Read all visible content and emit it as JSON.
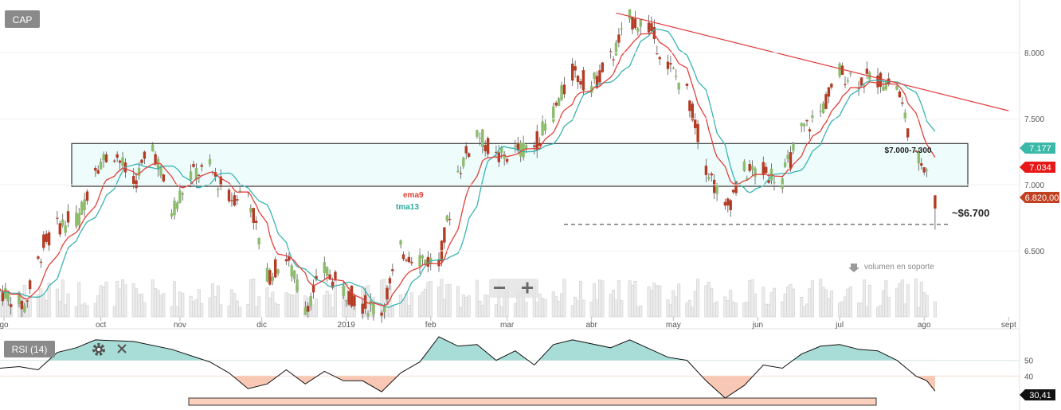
{
  "symbol_label": "CAP",
  "rsi_panel": {
    "label": "RSI (14)",
    "levels": [
      50,
      40
    ],
    "current": "30,41"
  },
  "price_axis": {
    "ticks": [
      "8.000",
      "7.500",
      "7.000",
      "6.500"
    ]
  },
  "time_axis": {
    "ticks": [
      "go",
      "oct",
      "nov",
      "dic",
      "2019",
      "feb",
      "mar",
      "abr",
      "may",
      "jun",
      "jul",
      "ago",
      "sept"
    ]
  },
  "badges": {
    "tma13": "7.177",
    "ema9": "7.034",
    "last": "6.820,00"
  },
  "annotations": {
    "zone": "$7.000-7.300",
    "support": "~$6.700",
    "volume_note": "volumen en soporte",
    "ema_label": "ema9",
    "tma_label": "tma13"
  },
  "colors": {
    "up": "#8cbc6c",
    "down": "#b43c24",
    "ema": "#e0413a",
    "tma": "#3ab4b0",
    "zone": "#eefcfc",
    "rsi_upper_fill": "#a8dcd6",
    "rsi_lower_fill": "#f8c8b4",
    "badge_teal": "#3ab8a8",
    "badge_red": "#e81818",
    "badge_brown": "#c04020"
  },
  "chart_data": {
    "type": "candlestick",
    "symbol": "CAP",
    "y_range": [
      6.0,
      8.35
    ],
    "x_range": [
      "2018-08-27",
      "2019-09-05"
    ],
    "price_series": [
      [
        "2018-08-27",
        6.2
      ],
      [
        "2018-09-05",
        6.08
      ],
      [
        "2018-09-12",
        6.55
      ],
      [
        "2018-09-18",
        6.7
      ],
      [
        "2018-09-25",
        6.75
      ],
      [
        "2018-10-01",
        7.15
      ],
      [
        "2018-10-08",
        7.25
      ],
      [
        "2018-10-15",
        7.0
      ],
      [
        "2018-10-22",
        7.3
      ],
      [
        "2018-10-29",
        6.8
      ],
      [
        "2018-11-05",
        7.08
      ],
      [
        "2018-11-12",
        7.12
      ],
      [
        "2018-11-19",
        6.9
      ],
      [
        "2018-11-26",
        6.95
      ],
      [
        "2018-12-03",
        6.3
      ],
      [
        "2018-12-10",
        6.45
      ],
      [
        "2018-12-17",
        6.08
      ],
      [
        "2018-12-24",
        6.35
      ],
      [
        "2018-12-31",
        6.2
      ],
      [
        "2019-01-07",
        6.1
      ],
      [
        "2019-01-14",
        6.05
      ],
      [
        "2019-01-21",
        6.5
      ],
      [
        "2019-01-28",
        6.45
      ],
      [
        "2019-02-04",
        6.4
      ],
      [
        "2019-02-11",
        7.1
      ],
      [
        "2019-02-18",
        7.4
      ],
      [
        "2019-02-25",
        7.2
      ],
      [
        "2019-03-04",
        7.25
      ],
      [
        "2019-03-11",
        7.3
      ],
      [
        "2019-03-18",
        7.55
      ],
      [
        "2019-03-25",
        7.85
      ],
      [
        "2019-04-01",
        7.75
      ],
      [
        "2019-04-08",
        7.95
      ],
      [
        "2019-04-15",
        8.25
      ],
      [
        "2019-04-22",
        8.2
      ],
      [
        "2019-04-29",
        7.9
      ],
      [
        "2019-05-06",
        7.7
      ],
      [
        "2019-05-13",
        7.15
      ],
      [
        "2019-05-20",
        6.8
      ],
      [
        "2019-05-27",
        7.1
      ],
      [
        "2019-06-03",
        7.1
      ],
      [
        "2019-06-10",
        7.05
      ],
      [
        "2019-06-17",
        7.4
      ],
      [
        "2019-06-24",
        7.55
      ],
      [
        "2019-07-01",
        7.85
      ],
      [
        "2019-07-08",
        7.8
      ],
      [
        "2019-07-15",
        7.8
      ],
      [
        "2019-07-22",
        7.75
      ],
      [
        "2019-07-29",
        7.2
      ],
      [
        "2019-08-02",
        7.15
      ],
      [
        "2019-08-05",
        6.82
      ]
    ],
    "last_price": 6.82,
    "moving_averages": [
      {
        "name": "ema9",
        "last": 7.034
      },
      {
        "name": "tma13",
        "last": 7.177
      }
    ],
    "resistance_zone": [
      7.0,
      7.3
    ],
    "support_level": 6.7,
    "trendline": [
      [
        "2019-04-10",
        8.3
      ],
      [
        "2019-09-01",
        7.56
      ]
    ],
    "rsi": {
      "period": 14,
      "levels": [
        50,
        40
      ],
      "last": 30.41,
      "series": [
        [
          "2018-08-27",
          45
        ],
        [
          "2018-09-03",
          46
        ],
        [
          "2018-09-10",
          44
        ],
        [
          "2018-09-17",
          55
        ],
        [
          "2018-09-24",
          58
        ],
        [
          "2018-10-01",
          63
        ],
        [
          "2018-10-15",
          62
        ],
        [
          "2018-10-29",
          57
        ],
        [
          "2018-11-12",
          49
        ],
        [
          "2018-11-19",
          42
        ],
        [
          "2018-11-26",
          32
        ],
        [
          "2018-12-03",
          35
        ],
        [
          "2018-12-10",
          44
        ],
        [
          "2018-12-17",
          35
        ],
        [
          "2018-12-24",
          43
        ],
        [
          "2018-12-31",
          37
        ],
        [
          "2019-01-07",
          37
        ],
        [
          "2019-01-14",
          30
        ],
        [
          "2019-01-21",
          42
        ],
        [
          "2019-01-28",
          49
        ],
        [
          "2019-02-04",
          65
        ],
        [
          "2019-02-11",
          59
        ],
        [
          "2019-02-18",
          60
        ],
        [
          "2019-02-25",
          50
        ],
        [
          "2019-03-04",
          56
        ],
        [
          "2019-03-11",
          47
        ],
        [
          "2019-03-18",
          60
        ],
        [
          "2019-03-25",
          63
        ],
        [
          "2019-04-08",
          58
        ],
        [
          "2019-04-15",
          63
        ],
        [
          "2019-04-29",
          52
        ],
        [
          "2019-05-06",
          50
        ],
        [
          "2019-05-13",
          37
        ],
        [
          "2019-05-20",
          26
        ],
        [
          "2019-05-27",
          34
        ],
        [
          "2019-06-03",
          47
        ],
        [
          "2019-06-10",
          45
        ],
        [
          "2019-06-17",
          54
        ],
        [
          "2019-06-24",
          59
        ],
        [
          "2019-07-01",
          60
        ],
        [
          "2019-07-08",
          57
        ],
        [
          "2019-07-15",
          56
        ],
        [
          "2019-07-22",
          50
        ],
        [
          "2019-07-29",
          40
        ],
        [
          "2019-08-02",
          37
        ],
        [
          "2019-08-05",
          30.41
        ]
      ]
    }
  }
}
